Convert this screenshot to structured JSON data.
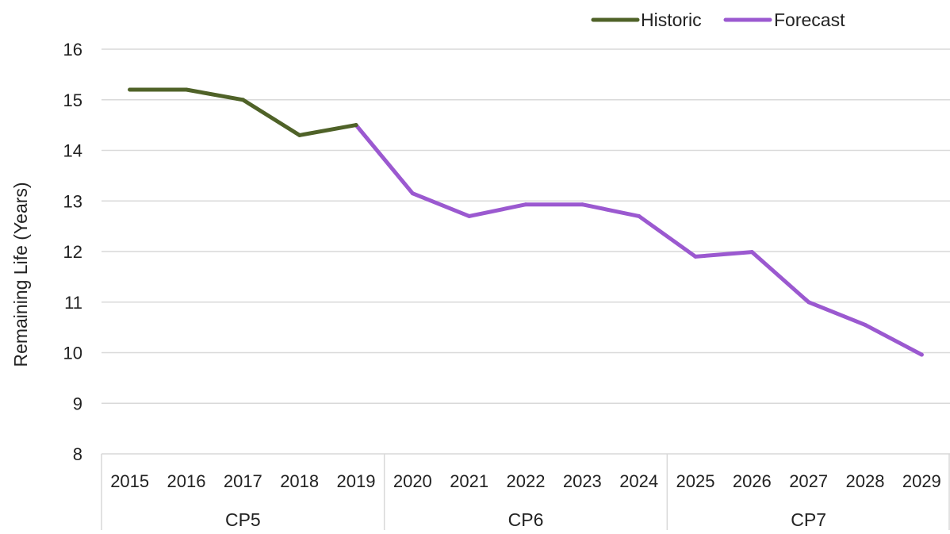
{
  "chart_data": {
    "type": "line",
    "title": "",
    "xlabel": "",
    "ylabel": "Remaining Life (Years)",
    "ylim": [
      8,
      16
    ],
    "yticks": [
      "8",
      "9",
      "10",
      "11",
      "12",
      "13",
      "14",
      "15",
      "16"
    ],
    "grid": true,
    "legend_position": "top-right",
    "categories": [
      "2015",
      "2016",
      "2017",
      "2018",
      "2019",
      "2020",
      "2021",
      "2022",
      "2023",
      "2024",
      "2025",
      "2026",
      "2027",
      "2028",
      "2029"
    ],
    "groups": [
      {
        "label": "CP5",
        "categories": [
          "2015",
          "2016",
          "2017",
          "2018",
          "2019"
        ]
      },
      {
        "label": "CP6",
        "categories": [
          "2020",
          "2021",
          "2022",
          "2023",
          "2024"
        ]
      },
      {
        "label": "CP7",
        "categories": [
          "2025",
          "2026",
          "2027",
          "2028",
          "2029"
        ]
      }
    ],
    "series": [
      {
        "name": "Historic",
        "color": "#4f6228",
        "x": [
          "2015",
          "2016",
          "2017",
          "2018",
          "2019"
        ],
        "values": [
          15.2,
          15.2,
          15.0,
          14.3,
          14.5
        ]
      },
      {
        "name": "Forecast",
        "color": "#9b59d0",
        "x": [
          "2019",
          "2020",
          "2021",
          "2022",
          "2023",
          "2024",
          "2025",
          "2026",
          "2027",
          "2028",
          "2029"
        ],
        "values": [
          14.5,
          13.15,
          12.7,
          12.93,
          12.93,
          12.7,
          11.9,
          11.99,
          11.0,
          10.55,
          9.96
        ]
      }
    ]
  }
}
